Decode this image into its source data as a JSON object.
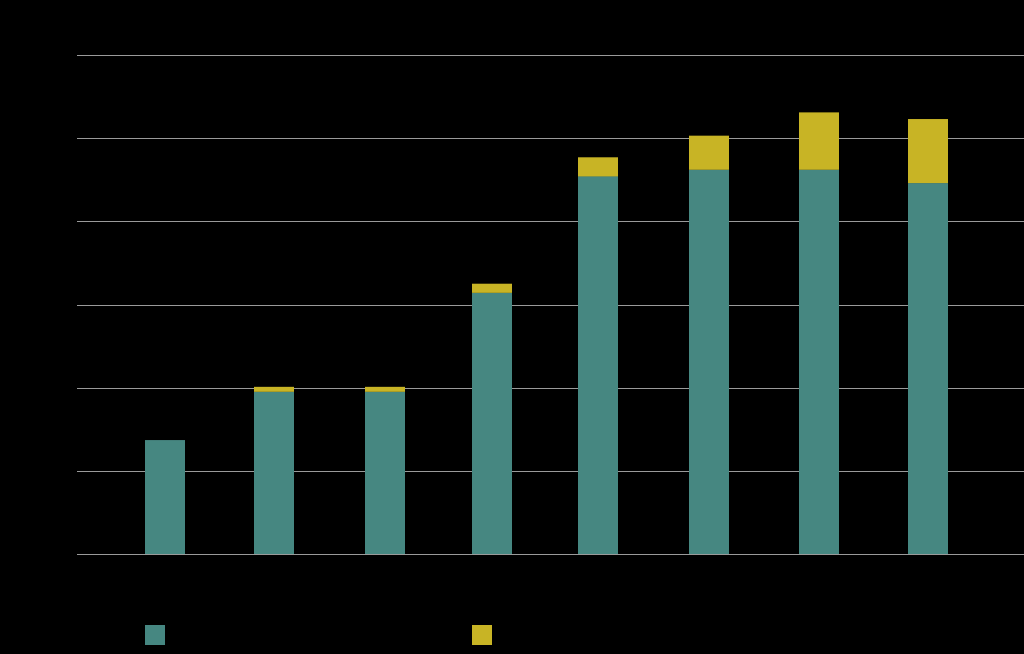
{
  "chart_data": {
    "type": "bar",
    "stacked": true,
    "categories": [
      "",
      "",
      "",
      "",
      "",
      "",
      "",
      ""
    ],
    "series": [
      {
        "name": "",
        "color": "#468781",
        "values": [
          13.7,
          19.5,
          19.5,
          31.4,
          45.4,
          46.2,
          46.2,
          44.6
        ]
      },
      {
        "name": "",
        "color": "#c8b425",
        "values": [
          0,
          0.6,
          0.6,
          1.1,
          2.3,
          4.1,
          6.9,
          7.7
        ]
      }
    ],
    "ylim": [
      0,
      60
    ],
    "ytick_step": 10,
    "grid": true,
    "gridline_color": "#9a9a9a",
    "background": "#000000",
    "legend_position": "bottom-left",
    "title": "",
    "xlabel": "",
    "ylabel": ""
  }
}
